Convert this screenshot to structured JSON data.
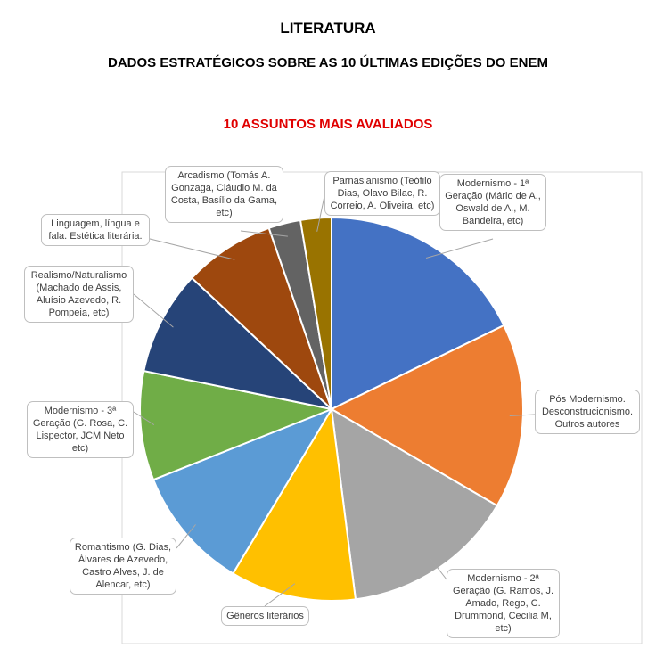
{
  "chart_data": {
    "type": "pie",
    "title": "LITERATURA",
    "subtitle": "DADOS ESTRATÉGICOS SOBRE AS 10 ÚLTIMAS EDIÇÕES DO ENEM",
    "chart_title": "10 ASSUNTOS MAIS AVALIADOS",
    "categories": [
      "Modernismo - 1ª Geração (Mário de A., Oswald de A., M. Bandeira, etc)",
      "Pós Modernismo. Desconstrucionismo. Outros autores",
      "Modernismo - 2ª Geração (G. Ramos, J. Amado, Rego, C. Drummond, Cecilia M, etc)",
      "Gêneros literários",
      "Romantismo (G. Dias, Álvares de Azevedo, Castro Alves, J. de Alencar, etc)",
      "Modernismo - 3ª Geração (G. Rosa, C. Lispector, JCM Neto etc)",
      "Realismo/Naturalismo (Machado de Assis, Aluísio Azevedo, R. Pompeia, etc)",
      "Linguagem, língua e fala. Estética literária.",
      "Arcadismo (Tomás A. Gonzaga, Cláudio M. da Costa, Basílio da Gama, etc)",
      "Parnasianismo (Teófilo Dias, Olavo Bilac, R. Correio, A. Oliveira, etc)"
    ],
    "values": [
      17.8,
      15.6,
      14.6,
      10.6,
      10.4,
      9.2,
      8.8,
      7.7,
      2.7,
      2.6
    ],
    "colors": [
      "#4472c4",
      "#ed7d31",
      "#a5a5a5",
      "#ffc000",
      "#5b9bd5",
      "#70ad47",
      "#264478",
      "#9e480e",
      "#636363",
      "#997300"
    ]
  }
}
